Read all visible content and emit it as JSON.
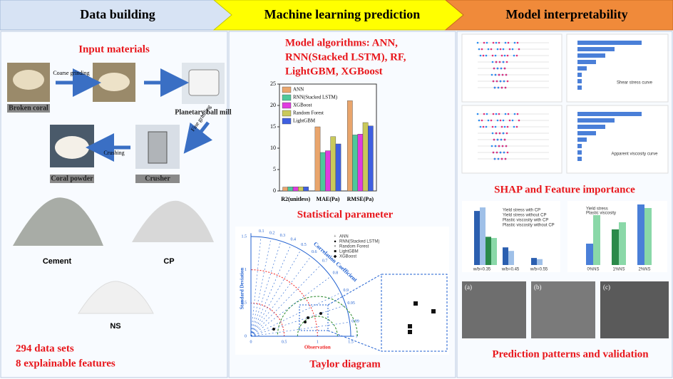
{
  "header": {
    "steps": [
      "Data building",
      "Machine learning prediction",
      "Model interpretability"
    ]
  },
  "data_building": {
    "title": "Input materials",
    "process": [
      "Coarse grinding",
      "Fine grinding",
      "Crushing"
    ],
    "images": [
      "Broken coral",
      "Planetary ball mill",
      "Coral powder",
      "Crusher"
    ],
    "materials": [
      "Cement",
      "CP",
      "NS"
    ],
    "summary": [
      "294 data sets",
      "8 explainable features"
    ]
  },
  "ml_prediction": {
    "algorithms": [
      "Model algorithms: ANN,",
      "RNN(Stacked LSTM), RF,",
      "LightGBM, XGBoost"
    ],
    "chart_data": {
      "type": "bar",
      "title": "Statistical parameter",
      "categories": [
        "R2(unitless)",
        "MAE(Pa)",
        "RMSE(Pa)"
      ],
      "series": [
        {
          "name": "ANN",
          "color": "#e9a56c",
          "values": [
            0.9,
            15,
            21.1
          ]
        },
        {
          "name": "RNN(Stacked LSTM)",
          "color": "#4fc89b",
          "values": [
            0.95,
            9,
            13.1
          ]
        },
        {
          "name": "XGBoost",
          "color": "#e03be0",
          "values": [
            0.96,
            9.4,
            13.3
          ]
        },
        {
          "name": "Random Forest",
          "color": "#c9c95a",
          "values": [
            0.97,
            12.7,
            16
          ]
        },
        {
          "name": "LightGBM",
          "color": "#3f5fe0",
          "values": [
            0.96,
            11,
            15.2
          ]
        }
      ],
      "ylim": [
        0,
        25
      ],
      "yticks": [
        0,
        5,
        10,
        15,
        20,
        25
      ]
    },
    "taylor": {
      "title": "Taylor diagram",
      "y_label": "Standard Deviation",
      "x_label": "Observation",
      "arc_label": "Correlation Coefficient",
      "std_ticks": [
        0,
        0.5,
        1.0,
        1.5
      ],
      "corr_ticks": [
        0.1,
        0.2,
        0.3,
        0.4,
        0.5,
        0.6,
        0.7,
        0.8,
        0.9,
        0.95,
        0.99,
        1
      ],
      "legend": [
        "ANN",
        "RNN(Stacked LSTM)",
        "Random Forest",
        "LightGBM",
        "XGBoost"
      ]
    }
  },
  "interpretability": {
    "shap_title": "SHAP and Feature importance",
    "shap_legends": [
      "Shear stress curve",
      "Apparent viscosity curve"
    ],
    "validation_legend_left": [
      "Yield stress with CP",
      "Yield stress without CP",
      "Plastic viscosity with CP",
      "Plastic viscosity without CP"
    ],
    "validation_categories_left": [
      "w/b=0.35",
      "w/b=0.45",
      "w/b=0.55"
    ],
    "validation_legend_right": [
      "Yield stress",
      "Plastic viscosity"
    ],
    "validation_categories_right": [
      "0%NS",
      "1%NS",
      "2%NS"
    ],
    "micrographs": [
      "(a)",
      "(b)",
      "(c)"
    ],
    "validation_title": "Prediction patterns and validation"
  }
}
